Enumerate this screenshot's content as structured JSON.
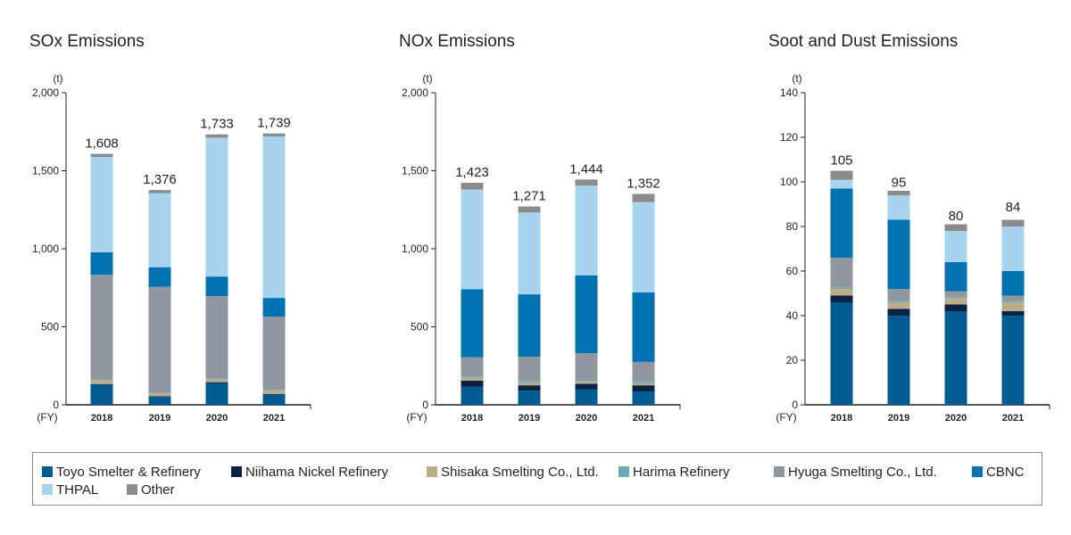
{
  "colors": {
    "Toyo Smelter & Refinery": "#005b93",
    "Niihama Nickel Refinery": "#0b2343",
    "Shisaka Smelting Co., Ltd.": "#b9ad8c",
    "Harima Refinery": "#6ea8b6",
    "Hyuga Smelting Co., Ltd.": "#9097a0",
    "CBNC": "#0072b2",
    "THPAL": "#a7d3ee",
    "Other": "#8b8b8b"
  },
  "legend": [
    "Toyo Smelter & Refinery",
    "Niihama Nickel Refinery",
    "Shisaka Smelting Co., Ltd.",
    "Harima Refinery",
    "Hyuga Smelting Co., Ltd.",
    "CBNC",
    "THPAL",
    "Other"
  ],
  "chart_data": [
    {
      "type": "bar",
      "stacked": true,
      "title": "SOx Emissions",
      "unit_label": "(t)",
      "x_unit_label": "(FY)",
      "categories": [
        "2018",
        "2019",
        "2020",
        "2021"
      ],
      "ylim": [
        0,
        2000
      ],
      "yticks": [
        0,
        500,
        1000,
        1500,
        2000
      ],
      "ytick_labels": [
        "0",
        "500",
        "1,000",
        "1,500",
        "2,000"
      ],
      "totals": [
        1608,
        1376,
        1733,
        1739
      ],
      "total_labels": [
        "1,608",
        "1,376",
        "1,733",
        "1,739"
      ],
      "series": [
        {
          "name": "Toyo Smelter & Refinery",
          "values": [
            128,
            50,
            140,
            65
          ]
        },
        {
          "name": "Niihama Nickel Refinery",
          "values": [
            5,
            5,
            5,
            5
          ]
        },
        {
          "name": "Shisaka Smelting Co., Ltd.",
          "values": [
            25,
            20,
            17,
            25
          ]
        },
        {
          "name": "Harima Refinery",
          "values": [
            5,
            5,
            5,
            5
          ]
        },
        {
          "name": "Hyuga Smelting Co., Ltd.",
          "values": [
            670,
            677,
            530,
            465
          ]
        },
        {
          "name": "CBNC",
          "values": [
            145,
            125,
            125,
            120
          ]
        },
        {
          "name": "THPAL",
          "values": [
            610,
            475,
            890,
            1035
          ]
        },
        {
          "name": "Other",
          "values": [
            20,
            19,
            21,
            19
          ]
        }
      ]
    },
    {
      "type": "bar",
      "stacked": true,
      "title": "NOx Emissions",
      "unit_label": "(t)",
      "x_unit_label": "(FY)",
      "categories": [
        "2018",
        "2019",
        "2020",
        "2021"
      ],
      "ylim": [
        0,
        2000
      ],
      "yticks": [
        0,
        500,
        1000,
        1500,
        2000
      ],
      "ytick_labels": [
        "0",
        "500",
        "1,000",
        "1,500",
        "2,000"
      ],
      "totals": [
        1423,
        1271,
        1444,
        1352
      ],
      "total_labels": [
        "1,423",
        "1,271",
        "1,444",
        "1,352"
      ],
      "series": [
        {
          "name": "Toyo Smelter & Refinery",
          "values": [
            115,
            90,
            100,
            85
          ]
        },
        {
          "name": "Niihama Nickel Refinery",
          "values": [
            40,
            35,
            35,
            40
          ]
        },
        {
          "name": "Shisaka Smelting Co., Ltd.",
          "values": [
            20,
            18,
            15,
            15
          ]
        },
        {
          "name": "Harima Refinery",
          "values": [
            10,
            10,
            10,
            10
          ]
        },
        {
          "name": "Hyuga Smelting Co., Ltd.",
          "values": [
            120,
            155,
            170,
            125
          ]
        },
        {
          "name": "CBNC",
          "values": [
            435,
            400,
            500,
            445
          ]
        },
        {
          "name": "THPAL",
          "values": [
            640,
            525,
            575,
            580
          ]
        },
        {
          "name": "Other",
          "values": [
            43,
            38,
            39,
            52
          ]
        }
      ]
    },
    {
      "type": "bar",
      "stacked": true,
      "title": "Soot and Dust Emissions",
      "unit_label": "(t)",
      "x_unit_label": "(FY)",
      "categories": [
        "2018",
        "2019",
        "2020",
        "2021"
      ],
      "ylim": [
        0,
        140
      ],
      "yticks": [
        0,
        20,
        40,
        60,
        80,
        100,
        120,
        140
      ],
      "ytick_labels": [
        "0",
        "20",
        "40",
        "60",
        "80",
        "100",
        "120",
        "140"
      ],
      "totals": [
        105,
        95,
        80,
        84
      ],
      "total_labels": [
        "105",
        "95",
        "80",
        "84"
      ],
      "series": [
        {
          "name": "Toyo Smelter & Refinery",
          "values": [
            46,
            40,
            42,
            40
          ]
        },
        {
          "name": "Niihama Nickel Refinery",
          "values": [
            3,
            3,
            3,
            2
          ]
        },
        {
          "name": "Shisaka Smelting Co., Ltd.",
          "values": [
            3,
            3,
            3,
            4
          ]
        },
        {
          "name": "Harima Refinery",
          "values": [
            0.5,
            0.5,
            0.5,
            0.5
          ]
        },
        {
          "name": "Hyuga Smelting Co., Ltd.",
          "values": [
            13.5,
            5.5,
            2.5,
            2.5
          ]
        },
        {
          "name": "CBNC",
          "values": [
            31,
            31,
            13,
            11
          ]
        },
        {
          "name": "THPAL",
          "values": [
            4,
            11,
            14,
            20
          ]
        },
        {
          "name": "Other",
          "values": [
            4,
            2,
            3,
            3
          ]
        }
      ]
    }
  ]
}
